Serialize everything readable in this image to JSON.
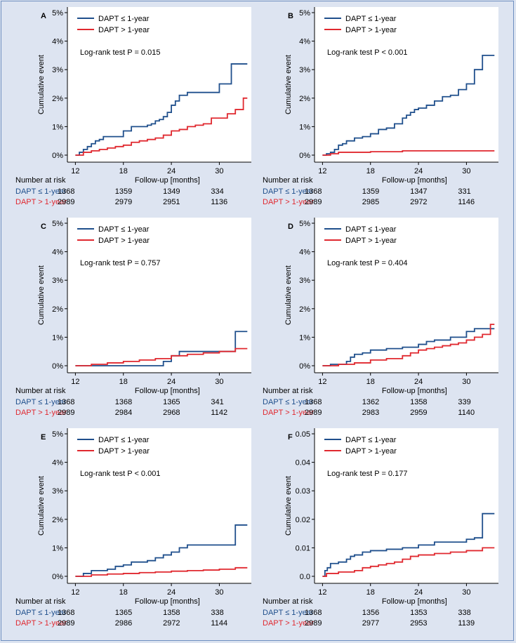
{
  "colors": {
    "dapt_short": "#1f4f8c",
    "dapt_long": "#e0282f",
    "background": "#dde4f1",
    "plot_bg": "#ffffff",
    "frame": "#6f8fc0"
  },
  "chart_data": [
    {
      "type": "line",
      "panel": "A",
      "ylabel": "Cumulative event",
      "xlabel": "Follow-up [months]",
      "xlim": [
        11,
        34
      ],
      "xticks": [
        12,
        18,
        24,
        30
      ],
      "ylim": [
        0,
        5
      ],
      "yticks": [
        "0%",
        "1%",
        "2%",
        "3%",
        "4%",
        "5%"
      ],
      "legend": [
        "DAPT ≤ 1-year",
        "DAPT > 1-year"
      ],
      "annotation": "Log-rank test P = 0.015",
      "series": [
        {
          "name": "DAPT ≤ 1-year",
          "x": [
            12,
            12.5,
            13,
            13.5,
            14,
            14.5,
            15,
            15.5,
            16,
            17,
            18,
            19,
            20,
            21,
            21.5,
            22,
            22.5,
            23,
            23.5,
            24,
            24.5,
            25,
            26,
            27,
            28,
            29,
            30,
            30.5,
            31,
            31.5,
            32,
            33.5
          ],
          "y": [
            0,
            0.1,
            0.2,
            0.3,
            0.4,
            0.5,
            0.55,
            0.65,
            0.65,
            0.65,
            0.85,
            1.0,
            1.0,
            1.05,
            1.1,
            1.2,
            1.25,
            1.35,
            1.5,
            1.75,
            1.9,
            2.1,
            2.2,
            2.2,
            2.2,
            2.2,
            2.5,
            2.5,
            2.5,
            3.2,
            3.2,
            3.2
          ]
        },
        {
          "name": "DAPT > 1-year",
          "x": [
            12,
            13,
            14,
            15,
            16,
            17,
            18,
            19,
            20,
            21,
            22,
            23,
            24,
            25,
            26,
            27,
            28,
            29,
            30,
            31,
            32,
            33,
            33.5
          ],
          "y": [
            0,
            0.1,
            0.15,
            0.2,
            0.25,
            0.3,
            0.35,
            0.45,
            0.5,
            0.55,
            0.6,
            0.7,
            0.85,
            0.9,
            1.0,
            1.05,
            1.1,
            1.3,
            1.3,
            1.45,
            1.6,
            2.0,
            2.0
          ]
        }
      ],
      "risk_table": {
        "title": "Number at risk",
        "rows": [
          {
            "label": "DAPT ≤ 1-year",
            "values": [
              "1368",
              "1359",
              "1349",
              "334"
            ]
          },
          {
            "label": "DAPT > 1-year",
            "values": [
              "2989",
              "2979",
              "2951",
              "1136"
            ]
          }
        ]
      }
    },
    {
      "type": "line",
      "panel": "B",
      "ylabel": "Cumulative event",
      "xlabel": "Follow-up [months]",
      "xlim": [
        11,
        34
      ],
      "xticks": [
        12,
        18,
        24,
        30
      ],
      "ylim": [
        0,
        5
      ],
      "yticks": [
        "0%",
        "1%",
        "2%",
        "3%",
        "4%",
        "5%"
      ],
      "legend": [
        "DAPT ≤ 1-year",
        "DAPT > 1-year"
      ],
      "annotation": "Log-rank test P < 0.001",
      "series": [
        {
          "name": "DAPT ≤ 1-year",
          "x": [
            12,
            12.5,
            13,
            13.5,
            14,
            14.5,
            15,
            16,
            17,
            18,
            19,
            20,
            21,
            22,
            22.5,
            23,
            23.5,
            24,
            25,
            26,
            27,
            28,
            29,
            30,
            31,
            32,
            33.5
          ],
          "y": [
            0,
            0.05,
            0.1,
            0.2,
            0.35,
            0.4,
            0.5,
            0.6,
            0.65,
            0.75,
            0.9,
            0.95,
            1.1,
            1.3,
            1.4,
            1.5,
            1.6,
            1.65,
            1.75,
            1.9,
            2.05,
            2.1,
            2.3,
            2.5,
            3.0,
            3.5,
            3.5
          ]
        },
        {
          "name": "DAPT > 1-year",
          "x": [
            12,
            13,
            14,
            18,
            22,
            26,
            30,
            33.5
          ],
          "y": [
            0,
            0.05,
            0.1,
            0.12,
            0.15,
            0.15,
            0.15,
            0.15
          ]
        }
      ],
      "risk_table": {
        "title": "Number at risk",
        "rows": [
          {
            "label": "DAPT ≤ 1-year",
            "values": [
              "1368",
              "1359",
              "1347",
              "331"
            ]
          },
          {
            "label": "DAPT > 1-year",
            "values": [
              "2989",
              "2985",
              "2972",
              "1146"
            ]
          }
        ]
      }
    },
    {
      "type": "line",
      "panel": "C",
      "ylabel": "Cumulative event",
      "xlabel": "Follow-up [months]",
      "xlim": [
        11,
        34
      ],
      "xticks": [
        12,
        18,
        24,
        30
      ],
      "ylim": [
        0,
        5
      ],
      "yticks": [
        "0%",
        "1%",
        "2%",
        "3%",
        "4%",
        "5%"
      ],
      "legend": [
        "DAPT ≤ 1-year",
        "DAPT > 1-year"
      ],
      "annotation": "Log-rank test P = 0.757",
      "series": [
        {
          "name": "DAPT ≤ 1-year",
          "x": [
            12,
            13,
            15,
            18,
            20,
            22,
            23,
            24,
            25,
            27,
            29,
            31,
            32,
            33.5
          ],
          "y": [
            0,
            0,
            0,
            0,
            0,
            0,
            0.15,
            0.35,
            0.5,
            0.5,
            0.5,
            0.5,
            1.2,
            1.2
          ]
        },
        {
          "name": "DAPT > 1-year",
          "x": [
            12,
            14,
            16,
            18,
            20,
            22,
            24,
            26,
            28,
            30,
            32,
            33.5
          ],
          "y": [
            0,
            0.05,
            0.1,
            0.15,
            0.2,
            0.25,
            0.35,
            0.4,
            0.45,
            0.5,
            0.6,
            0.6
          ]
        }
      ],
      "risk_table": {
        "title": "Number at risk",
        "rows": [
          {
            "label": "DAPT ≤ 1-year",
            "values": [
              "1368",
              "1368",
              "1365",
              "341"
            ]
          },
          {
            "label": "DAPT > 1-year",
            "values": [
              "2989",
              "2984",
              "2968",
              "1142"
            ]
          }
        ]
      }
    },
    {
      "type": "line",
      "panel": "D",
      "ylabel": "Cumulative event",
      "xlabel": "Follow-up [months]",
      "xlim": [
        11,
        34
      ],
      "xticks": [
        12,
        18,
        24,
        30
      ],
      "ylim": [
        0,
        5
      ],
      "yticks": [
        "0%",
        "1%",
        "2%",
        "3%",
        "4%",
        "5%"
      ],
      "legend": [
        "DAPT ≤ 1-year",
        "DAPT > 1-year"
      ],
      "annotation": "Log-rank test P = 0.404",
      "series": [
        {
          "name": "DAPT ≤ 1-year",
          "x": [
            12,
            13,
            14,
            15,
            15.5,
            16,
            17,
            18,
            20,
            22,
            24,
            25,
            26,
            28,
            30,
            31,
            33.5
          ],
          "y": [
            0,
            0.05,
            0.05,
            0.15,
            0.3,
            0.4,
            0.45,
            0.55,
            0.6,
            0.65,
            0.75,
            0.85,
            0.9,
            1.0,
            1.2,
            1.3,
            1.3
          ]
        },
        {
          "name": "DAPT > 1-year",
          "x": [
            12,
            14,
            16,
            18,
            20,
            22,
            23,
            24,
            25,
            26,
            27,
            28,
            29,
            30,
            31,
            32,
            33,
            33.5
          ],
          "y": [
            0,
            0.05,
            0.1,
            0.2,
            0.25,
            0.35,
            0.45,
            0.55,
            0.6,
            0.65,
            0.7,
            0.75,
            0.8,
            0.9,
            1.0,
            1.1,
            1.45,
            1.45
          ]
        }
      ],
      "risk_table": {
        "title": "Number at risk",
        "rows": [
          {
            "label": "DAPT ≤ 1-year",
            "values": [
              "1368",
              "1362",
              "1358",
              "339"
            ]
          },
          {
            "label": "DAPT > 1-year",
            "values": [
              "2989",
              "2983",
              "2959",
              "1140"
            ]
          }
        ]
      }
    },
    {
      "type": "line",
      "panel": "E",
      "ylabel": "Cumulative event",
      "xlabel": "Follow-up [months]",
      "xlim": [
        11,
        34
      ],
      "xticks": [
        12,
        18,
        24,
        30
      ],
      "ylim": [
        0,
        5
      ],
      "yticks": [
        "0%",
        "1%",
        "2%",
        "3%",
        "4%",
        "5%"
      ],
      "legend": [
        "DAPT ≤ 1-year",
        "DAPT > 1-year"
      ],
      "annotation": "Log-rank test P < 0.001",
      "series": [
        {
          "name": "DAPT ≤ 1-year",
          "x": [
            12,
            13,
            14,
            16,
            17,
            18,
            19,
            21,
            22,
            23,
            24,
            25,
            26,
            29,
            30,
            32,
            33.5
          ],
          "y": [
            0,
            0.1,
            0.2,
            0.25,
            0.35,
            0.4,
            0.5,
            0.55,
            0.65,
            0.75,
            0.85,
            1.0,
            1.1,
            1.1,
            1.1,
            1.8,
            1.8
          ]
        },
        {
          "name": "DAPT > 1-year",
          "x": [
            12,
            14,
            16,
            18,
            20,
            22,
            24,
            26,
            28,
            30,
            32,
            33.5
          ],
          "y": [
            0,
            0.05,
            0.08,
            0.1,
            0.13,
            0.15,
            0.18,
            0.2,
            0.22,
            0.25,
            0.3,
            0.3
          ]
        }
      ],
      "risk_table": {
        "title": "Number at risk",
        "rows": [
          {
            "label": "DAPT ≤ 1-year",
            "values": [
              "1368",
              "1365",
              "1358",
              "338"
            ]
          },
          {
            "label": "DAPT > 1-year",
            "values": [
              "2989",
              "2986",
              "2972",
              "1144"
            ]
          }
        ]
      }
    },
    {
      "type": "line",
      "panel": "F",
      "ylabel": "Cumulative event",
      "xlabel": "Follow-up [months]",
      "xlim": [
        11,
        34
      ],
      "xticks": [
        12,
        18,
        24,
        30
      ],
      "ylim": [
        0,
        0.05
      ],
      "yticks": [
        "0.0",
        "0.01",
        "0.02",
        "0.03",
        "0.04",
        "0.05"
      ],
      "legend": [
        "DAPT ≤ 1-year",
        "DAPT > 1-year"
      ],
      "annotation": "Log-rank test P = 0.177",
      "series": [
        {
          "name": "DAPT ≤ 1-year",
          "x": [
            12,
            12.3,
            12.6,
            13,
            14,
            15,
            15.5,
            16,
            17,
            18,
            20,
            22,
            24,
            26,
            28,
            30,
            31,
            32,
            33.5
          ],
          "y": [
            0,
            0.002,
            0.003,
            0.0045,
            0.005,
            0.006,
            0.007,
            0.0075,
            0.0085,
            0.009,
            0.0095,
            0.01,
            0.011,
            0.012,
            0.012,
            0.013,
            0.0135,
            0.022,
            0.022
          ]
        },
        {
          "name": "DAPT > 1-year",
          "x": [
            12,
            12.5,
            14,
            16,
            17,
            18,
            19,
            20,
            21,
            22,
            23,
            24,
            26,
            28,
            30,
            32,
            33.5
          ],
          "y": [
            0,
            0.001,
            0.0015,
            0.002,
            0.003,
            0.0035,
            0.004,
            0.0045,
            0.005,
            0.006,
            0.007,
            0.0075,
            0.008,
            0.0085,
            0.009,
            0.01,
            0.01
          ]
        }
      ],
      "risk_table": {
        "title": "Number at risk",
        "rows": [
          {
            "label": "DAPT ≤ 1-year",
            "values": [
              "1368",
              "1356",
              "1353",
              "338"
            ]
          },
          {
            "label": "DAPT > 1-year",
            "values": [
              "2989",
              "2977",
              "2953",
              "1139"
            ]
          }
        ]
      }
    }
  ]
}
